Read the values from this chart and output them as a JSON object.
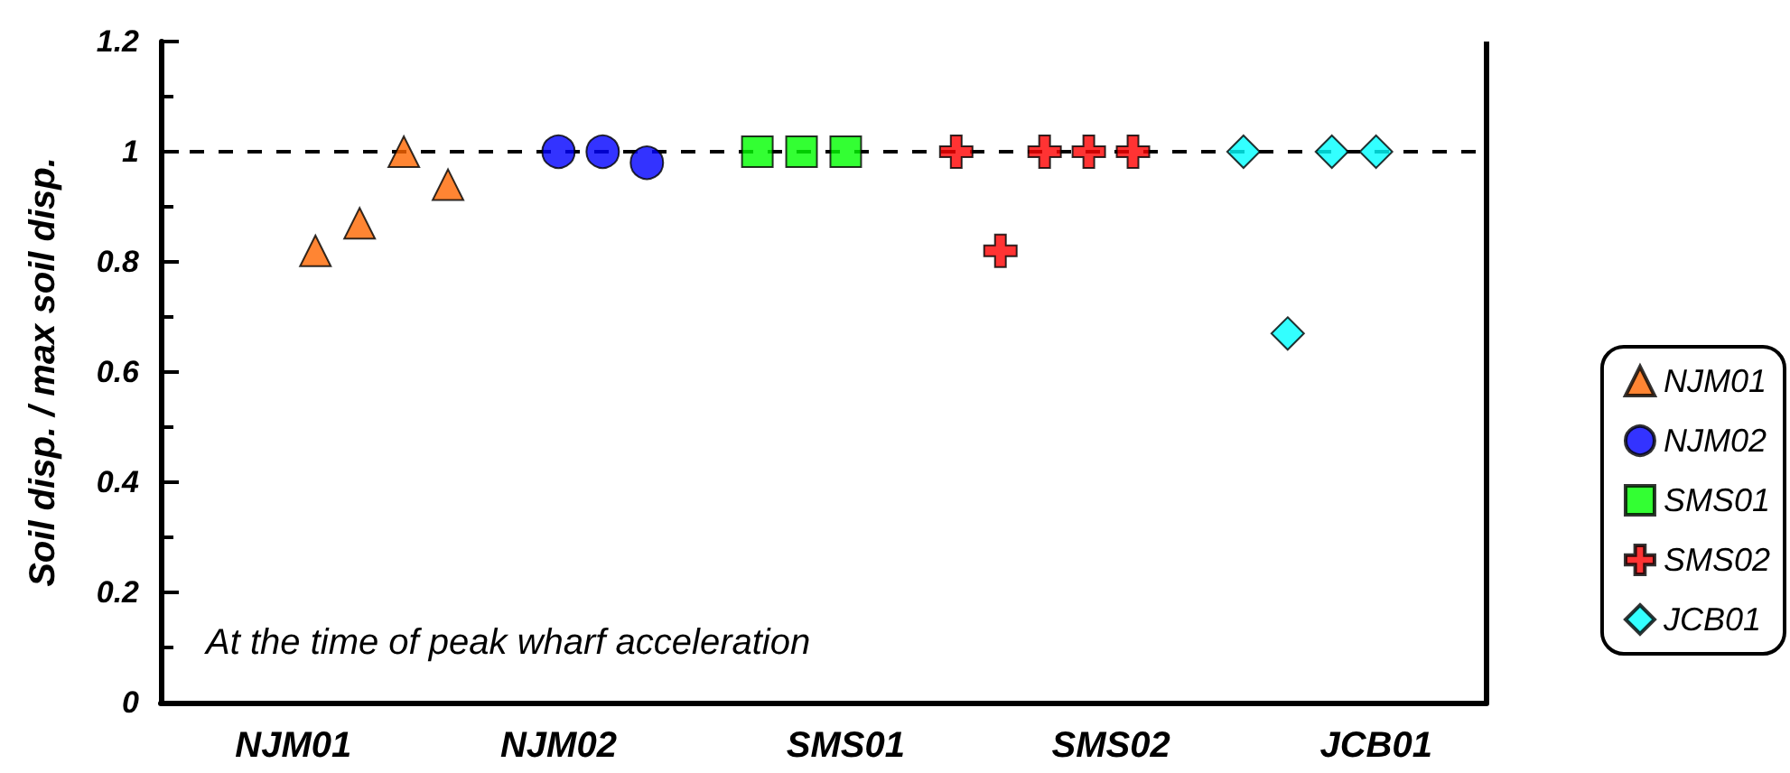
{
  "chart_data": {
    "type": "scatter",
    "ylabel": "Soil disp. / max soil disp.",
    "categories": [
      null,
      null,
      null,
      null,
      null,
      null,
      "NJM01",
      null,
      null,
      null,
      null,
      null,
      null,
      null,
      null,
      null,
      null,
      null,
      "NJM02",
      null,
      null,
      null,
      null,
      null,
      null,
      null,
      null,
      null,
      null,
      null,
      null,
      "SMS01",
      null,
      null,
      null,
      null,
      null,
      null,
      null,
      null,
      null,
      null,
      null,
      "SMS02",
      null,
      null,
      null,
      null,
      null,
      null,
      null,
      null,
      null,
      null,
      null,
      "JCB01",
      null,
      null,
      null,
      null,
      null
    ],
    "ylim": [
      0,
      1.2
    ],
    "yticks": [
      0,
      0.2,
      0.4,
      0.6,
      0.8,
      1,
      1.2
    ],
    "grid": false,
    "legend": "right",
    "series": [
      {
        "name": "NJM01",
        "color": "#ff6600",
        "marker": "triangle",
        "values": [
          null,
          null,
          null,
          null,
          null,
          null,
          null,
          0.82,
          null,
          0.87,
          null,
          1,
          null,
          0.94,
          null,
          null,
          null,
          null,
          null,
          null,
          null,
          null,
          null,
          null,
          null,
          null,
          null,
          null,
          null,
          null,
          null,
          null,
          null,
          null,
          null,
          null,
          null,
          null,
          null,
          null,
          null,
          null,
          null,
          null,
          null,
          null,
          null,
          null,
          null,
          null,
          null,
          null,
          null,
          null,
          null,
          null,
          null,
          null,
          null,
          null,
          null
        ]
      },
      {
        "name": "NJM02",
        "color": "#0000ff",
        "marker": "circle",
        "values": [
          null,
          null,
          null,
          null,
          null,
          null,
          null,
          null,
          null,
          null,
          null,
          null,
          null,
          null,
          null,
          null,
          null,
          null,
          1,
          null,
          1,
          null,
          0.98,
          null,
          null,
          null,
          null,
          null,
          null,
          null,
          null,
          null,
          null,
          null,
          null,
          null,
          null,
          null,
          null,
          null,
          null,
          null,
          null,
          null,
          null,
          null,
          null,
          null,
          null,
          null,
          null,
          null,
          null,
          null,
          null,
          null,
          null,
          null,
          null,
          null,
          null
        ]
      },
      {
        "name": "SMS01",
        "color": "#00ff00",
        "marker": "square",
        "values": [
          null,
          null,
          null,
          null,
          null,
          null,
          null,
          null,
          null,
          null,
          null,
          null,
          null,
          null,
          null,
          null,
          null,
          null,
          null,
          null,
          null,
          null,
          null,
          null,
          null,
          null,
          null,
          1,
          null,
          1,
          null,
          1,
          null,
          null,
          null,
          null,
          null,
          null,
          null,
          null,
          null,
          null,
          null,
          null,
          null,
          null,
          null,
          null,
          null,
          null,
          null,
          null,
          null,
          null,
          null,
          null,
          null,
          null,
          null,
          null,
          null
        ]
      },
      {
        "name": "SMS02",
        "color": "#ff0000",
        "marker": "cross",
        "values": [
          null,
          null,
          null,
          null,
          null,
          null,
          null,
          null,
          null,
          null,
          null,
          null,
          null,
          null,
          null,
          null,
          null,
          null,
          null,
          null,
          null,
          null,
          null,
          null,
          null,
          null,
          null,
          null,
          null,
          null,
          null,
          null,
          null,
          null,
          null,
          null,
          1,
          null,
          0.82,
          null,
          1,
          null,
          1,
          null,
          1,
          null,
          null,
          null,
          null,
          null,
          null,
          null,
          null,
          null,
          null,
          null,
          null,
          null,
          null,
          null,
          null
        ]
      },
      {
        "name": "JCB01",
        "color": "#00ffff",
        "marker": "diamond",
        "values": [
          null,
          null,
          null,
          null,
          null,
          null,
          null,
          null,
          null,
          null,
          null,
          null,
          null,
          null,
          null,
          null,
          null,
          null,
          null,
          null,
          null,
          null,
          null,
          null,
          null,
          null,
          null,
          null,
          null,
          null,
          null,
          null,
          null,
          null,
          null,
          null,
          null,
          null,
          null,
          null,
          null,
          null,
          null,
          null,
          null,
          null,
          null,
          null,
          null,
          1,
          null,
          0.67,
          null,
          1,
          null,
          1,
          null,
          null,
          null,
          null,
          null
        ]
      }
    ],
    "ref_lines": [
      {
        "axis": "y",
        "value": 1,
        "color": "#000000",
        "line_style": "dashed"
      }
    ],
    "annotations": [
      "At the time of peak wharf acceleration"
    ]
  }
}
